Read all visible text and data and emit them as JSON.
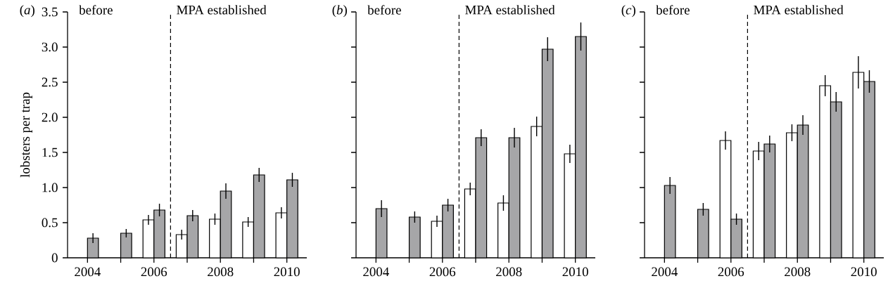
{
  "chart_data": [
    {
      "type": "bar",
      "title": "(*a*)",
      "ylabel": "lobsters per trap",
      "annotations": [
        "before"
      ],
      "xlim": [
        2003.4,
        2010.6
      ],
      "xticks": [
        2004,
        {
          "value": 2005,
          "label": null
        },
        2006,
        {
          "value": 2007,
          "label": null
        },
        2008,
        {
          "value": 2009,
          "label": null
        },
        2010
      ],
      "ylim": [
        0,
        3.5
      ],
      "yticks": [
        0,
        0.5,
        {
          "value": 1,
          "label": "1.0"
        },
        1.5,
        {
          "value": 2,
          "label": "2.0"
        },
        2.5,
        {
          "value": 3,
          "label": "3.0"
        },
        3.5
      ],
      "ref_lines": [
        {
          "axis": "x",
          "value": 2006.5,
          "label": "MPA established",
          "line_style": "dashed"
        }
      ],
      "x": [
        2004,
        2005,
        2006,
        2007,
        2008,
        2009,
        2010
      ],
      "series": [
        {
          "color": "#ffffff",
          "values": [
            null,
            null,
            0.54,
            0.33,
            0.55,
            0.51,
            0.64
          ],
          "errors": [
            null,
            null,
            0.07,
            0.07,
            0.08,
            0.07,
            0.08
          ]
        },
        {
          "color": "#a6a6a8",
          "values": [
            0.28,
            0.35,
            0.68,
            0.6,
            0.95,
            1.18,
            1.11
          ],
          "errors": [
            0.07,
            0.06,
            0.09,
            0.08,
            0.11,
            0.1,
            0.1
          ]
        }
      ]
    },
    {
      "type": "bar",
      "title": "(*b*)",
      "annotations": [
        "before"
      ],
      "tick_labels": "x",
      "xlim": [
        2003.4,
        2010.6
      ],
      "xticks": [
        2004,
        {
          "value": 2005,
          "label": null
        },
        2006,
        {
          "value": 2007,
          "label": null
        },
        2008,
        {
          "value": 2009,
          "label": null
        },
        2010
      ],
      "ylim": [
        0,
        3.5
      ],
      "yticks": [
        0,
        0.5,
        1,
        1.5,
        2,
        2.5,
        3,
        3.5
      ],
      "ref_lines": [
        {
          "axis": "x",
          "value": 2006.5,
          "label": "MPA established",
          "line_style": "dashed"
        }
      ],
      "x": [
        2004,
        2005,
        2006,
        2007,
        2008,
        2009,
        2010
      ],
      "series": [
        {
          "color": "#ffffff",
          "values": [
            null,
            null,
            0.52,
            0.98,
            0.78,
            1.87,
            1.48
          ],
          "errors": [
            null,
            null,
            0.08,
            0.09,
            0.11,
            0.14,
            0.13
          ]
        },
        {
          "color": "#a6a6a8",
          "values": [
            0.7,
            0.58,
            0.75,
            1.71,
            1.71,
            2.97,
            3.15
          ],
          "errors": [
            0.12,
            0.08,
            0.09,
            0.12,
            0.14,
            0.17,
            0.2
          ]
        }
      ]
    },
    {
      "type": "bar",
      "title": "(*c*)",
      "annotations": [
        "before"
      ],
      "tick_labels": "x",
      "xlim": [
        2003.4,
        2010.6
      ],
      "xticks": [
        2004,
        {
          "value": 2005,
          "label": null
        },
        2006,
        {
          "value": 2007,
          "label": null
        },
        2008,
        {
          "value": 2009,
          "label": null
        },
        2010
      ],
      "ylim": [
        0,
        3.5
      ],
      "yticks": [
        0,
        0.5,
        1,
        1.5,
        2,
        2.5,
        3,
        3.5
      ],
      "ref_lines": [
        {
          "axis": "x",
          "value": 2006.5,
          "label": "MPA established",
          "line_style": "dashed"
        }
      ],
      "x": [
        2004,
        2005,
        2006,
        2007,
        2008,
        2009,
        2010
      ],
      "series": [
        {
          "color": "#ffffff",
          "values": [
            null,
            null,
            1.67,
            1.52,
            1.78,
            2.45,
            2.64
          ],
          "errors": [
            null,
            null,
            0.13,
            0.13,
            0.12,
            0.15,
            0.23
          ]
        },
        {
          "color": "#a6a6a8",
          "values": [
            1.03,
            0.69,
            0.55,
            1.62,
            1.89,
            2.22,
            2.51
          ],
          "errors": [
            0.12,
            0.09,
            0.08,
            0.12,
            0.14,
            0.14,
            0.16
          ]
        }
      ]
    }
  ]
}
